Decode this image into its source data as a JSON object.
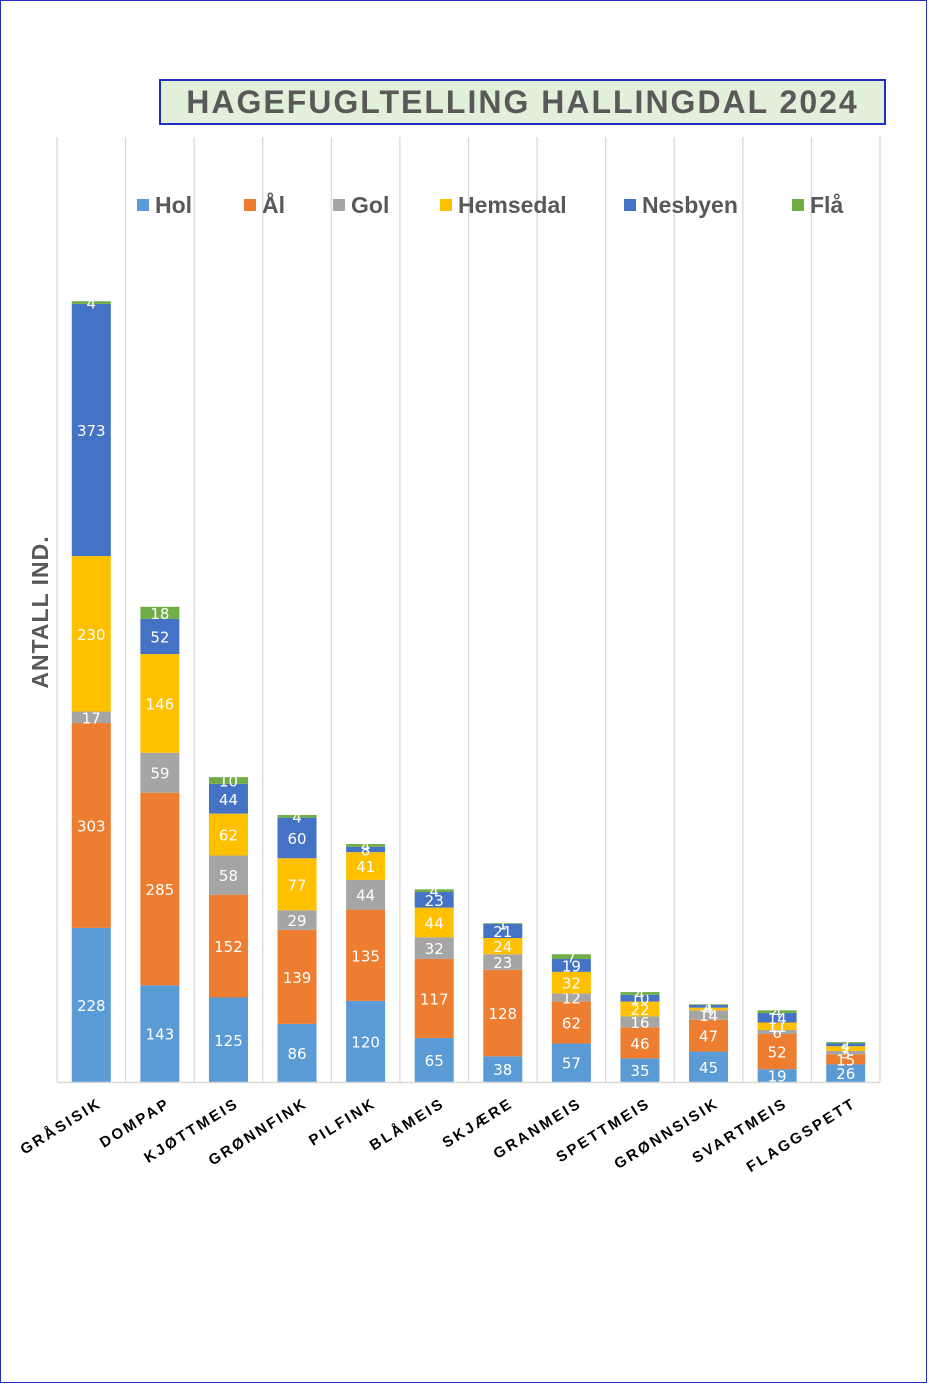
{
  "chart_data": {
    "type": "bar",
    "stacked": true,
    "title": "HAGEFUGLTELLING HALLINGDAL 2024",
    "xlabel": "",
    "ylabel": "ANTALL IND.",
    "ylim": [
      0,
      1270
    ],
    "grid": "vertical",
    "legend_position": "top",
    "categories": [
      "GRÅSISIK",
      "DOMPAP",
      "KJØTTMEIS",
      "GRØNNFINK",
      "PILFINK",
      "BLÅMEIS",
      "SKJÆRE",
      "GRANMEIS",
      "SPETTMEIS",
      "GRØNNSISIK",
      "SVARTMEIS",
      "FLAGGSPETT"
    ],
    "series": [
      {
        "name": "Hol",
        "color": "#5b9bd5",
        "values": [
          228,
          143,
          125,
          86,
          120,
          65,
          38,
          57,
          35,
          45,
          19,
          26
        ]
      },
      {
        "name": "Ål",
        "color": "#ed7d31",
        "values": [
          303,
          285,
          152,
          139,
          135,
          117,
          128,
          62,
          46,
          47,
          52,
          15
        ]
      },
      {
        "name": "Gol",
        "color": "#a5a5a5",
        "values": [
          17,
          59,
          58,
          29,
          44,
          32,
          23,
          12,
          16,
          14,
          6,
          5
        ]
      },
      {
        "name": "Hemsedal",
        "color": "#ffc000",
        "values": [
          230,
          146,
          62,
          77,
          41,
          44,
          24,
          32,
          22,
          4,
          11,
          7
        ]
      },
      {
        "name": "Nesbyen",
        "color": "#4472c4",
        "values": [
          373,
          52,
          44,
          60,
          8,
          23,
          21,
          19,
          10,
          4,
          14,
          4
        ]
      },
      {
        "name": "Flå",
        "color": "#70ad47",
        "values": [
          4,
          18,
          10,
          4,
          4,
          4,
          1,
          7,
          4,
          1,
          4,
          2
        ]
      }
    ]
  }
}
